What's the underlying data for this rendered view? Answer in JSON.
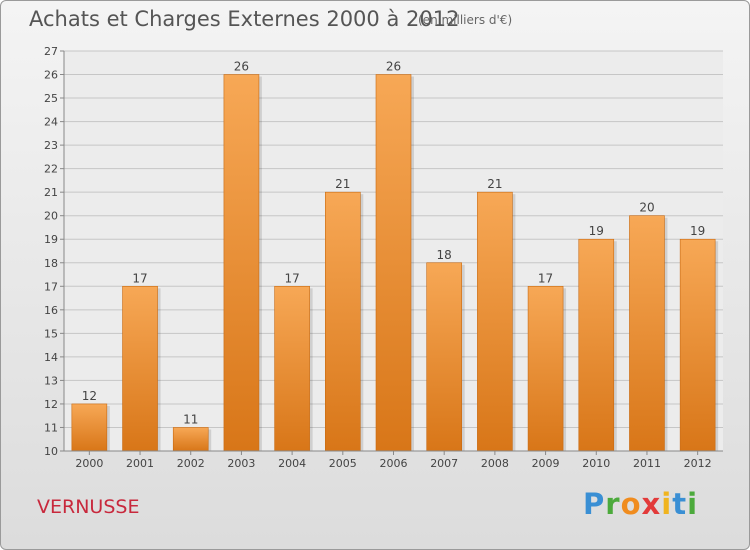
{
  "header": {
    "title": "Achats et Charges Externes 2000 à 2012",
    "subtitle": "(en milliers d'€)"
  },
  "footer": {
    "place": "VERNUSSE",
    "brand": "Proxiti"
  },
  "colors": {
    "bar_light": "#f6a550",
    "bar_dark": "#d87618",
    "brand_p": "#3a8fd4",
    "brand_r": "#4caa3c",
    "brand_o": "#f08c1e",
    "brand_x": "#e23a3a",
    "brand_i": "#f0b41e",
    "brand_t": "#3a8fd4",
    "place": "#c8283c"
  },
  "chart_data": {
    "type": "bar",
    "title": "Achats et Charges Externes 2000 à 2012",
    "subtitle": "(en milliers d'€)",
    "categories": [
      "2000",
      "2001",
      "2002",
      "2003",
      "2004",
      "2005",
      "2006",
      "2007",
      "2008",
      "2009",
      "2010",
      "2011",
      "2012"
    ],
    "values": [
      12,
      17,
      11,
      26,
      17,
      21,
      26,
      18,
      21,
      17,
      19,
      20,
      19
    ],
    "ylim": [
      10,
      27
    ],
    "yticks": [
      10,
      11,
      12,
      13,
      14,
      15,
      16,
      17,
      18,
      19,
      20,
      21,
      22,
      23,
      24,
      25,
      26,
      27
    ],
    "grid": true,
    "legend": "none"
  }
}
